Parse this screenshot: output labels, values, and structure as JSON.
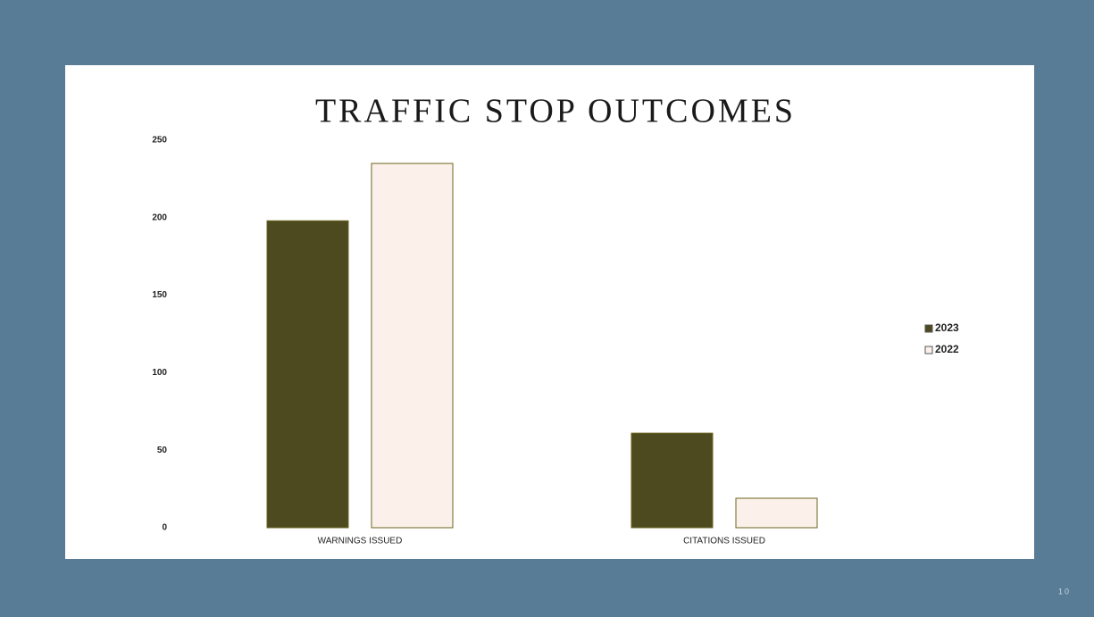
{
  "chart_data": {
    "type": "bar",
    "title": "TRAFFIC STOP OUTCOMES",
    "categories": [
      "WARNINGS ISSUED",
      "CITATIONS ISSUED"
    ],
    "series": [
      {
        "name": "2023",
        "color": "#4d4a1f",
        "values": [
          198,
          61
        ]
      },
      {
        "name": "2022",
        "color": "#fcf1ea",
        "values": [
          235,
          19
        ]
      }
    ],
    "ylim": [
      0,
      250
    ],
    "yticks": [
      0,
      50,
      100,
      150,
      200,
      250
    ],
    "grid": false,
    "legend": "right"
  },
  "page_number": "10"
}
